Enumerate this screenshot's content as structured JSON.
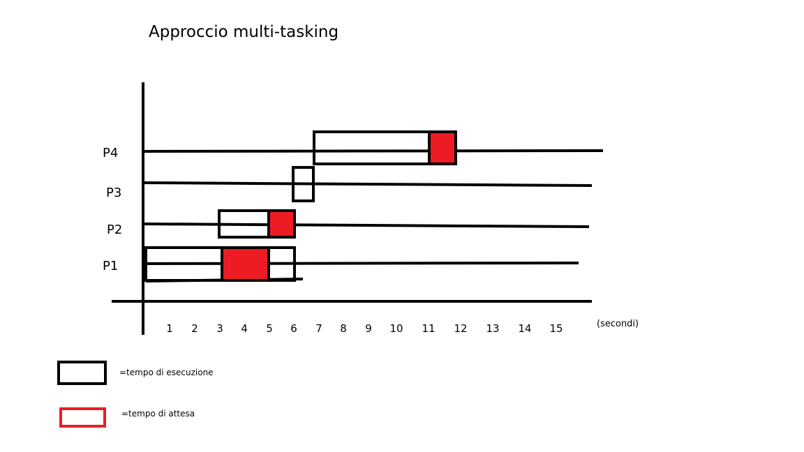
{
  "title": "Approccio multi-tasking",
  "rows": [
    {
      "label": "P4"
    },
    {
      "label": "P3"
    },
    {
      "label": "P2"
    },
    {
      "label": "P1"
    }
  ],
  "axis": {
    "ticks": [
      "1",
      "2",
      "3",
      "4",
      "5",
      "6",
      "7",
      "8",
      "9",
      "10",
      "11",
      "12",
      "13",
      "14",
      "15"
    ],
    "unit": "(secondi)"
  },
  "legend": {
    "execution_label": "=tempo di esecuzione",
    "waiting_label": "=tempo di attesa"
  },
  "colors": {
    "execution_outline": "#000000",
    "waiting_fill": "#ed1c24",
    "line": "#000000"
  }
}
